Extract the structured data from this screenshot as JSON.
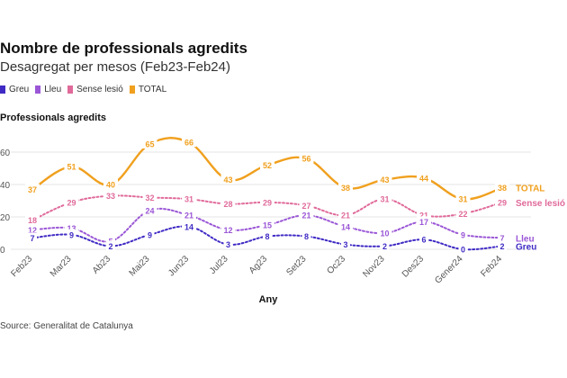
{
  "header": {
    "title": "Nombre de professionals agredits",
    "subtitle": "Desagregat per mesos (Feb23-Feb24)"
  },
  "legend": [
    {
      "label": "Greu",
      "color": "#3f2bc4"
    },
    {
      "label": "Lleu",
      "color": "#9a56d6"
    },
    {
      "label": "Sense lesió",
      "color": "#e06a9a"
    },
    {
      "label": "TOTAL",
      "color": "#f0a01e"
    }
  ],
  "footer": {
    "source": "Source: Generalitat de Catalunya"
  },
  "chart_data": {
    "type": "line",
    "title": "Nombre de professionals agredits",
    "subtitle": "Desagregat per mesos (Feb23-Feb24)",
    "ylabel": "Professionals agredits",
    "xlabel": "Any",
    "ylim": [
      0,
      70
    ],
    "yticks": [
      0,
      20,
      40,
      60
    ],
    "ytick_labels": [
      "0",
      "20",
      "40",
      "60"
    ],
    "grid": "horizontal",
    "legend_position": "top-left",
    "categories": [
      "Feb23",
      "Mar23",
      "Ab23",
      "Mai23",
      "Jun23",
      "Jul23",
      "Ag23",
      "Set23",
      "Oc23",
      "Nov23",
      "Des23",
      "Gener24",
      "Feb24"
    ],
    "series": [
      {
        "name": "TOTAL",
        "color": "#f0a01e",
        "dashed": false,
        "end_label": "TOTAL",
        "values": [
          37,
          51,
          40,
          65,
          66,
          43,
          52,
          56,
          38,
          43,
          44,
          31,
          38
        ]
      },
      {
        "name": "Sense lesió",
        "color": "#e06a9a",
        "dashed": true,
        "end_label": "Sense lesió",
        "values": [
          18,
          29,
          33,
          32,
          31,
          28,
          29,
          27,
          21,
          31,
          21,
          22,
          29
        ]
      },
      {
        "name": "Lleu",
        "color": "#9a56d6",
        "dashed": true,
        "end_label": "Lleu",
        "values": [
          12,
          13,
          5,
          24,
          21,
          12,
          15,
          21,
          14,
          10,
          17,
          9,
          7
        ]
      },
      {
        "name": "Greu",
        "color": "#3f2bc4",
        "dashed": true,
        "end_label": "Greu",
        "values": [
          7,
          9,
          2,
          9,
          14,
          3,
          8,
          8,
          3,
          2,
          6,
          0,
          2
        ]
      }
    ],
    "source": "Source: Generalitat de Catalunya"
  }
}
